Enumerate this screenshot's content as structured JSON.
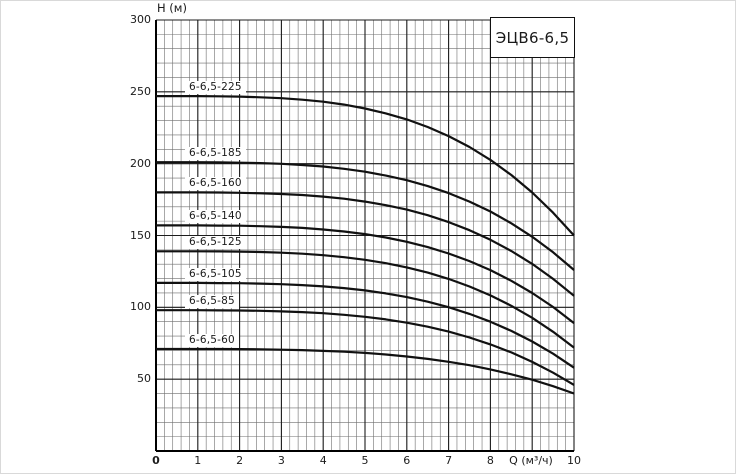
{
  "figure": {
    "title": "ЭЦВ6-6,5",
    "y_axis_title": "Н (м)",
    "x_axis_title": "Q (м³/ч)"
  },
  "chart_data": {
    "type": "line",
    "title": "ЭЦВ6-6,5",
    "xlabel": "Q (м³/ч)",
    "ylabel": "Н (м)",
    "xlim": [
      0,
      10
    ],
    "ylim": [
      0,
      300
    ],
    "x_ticks": [
      0,
      1,
      2,
      3,
      4,
      5,
      6,
      7,
      8,
      10
    ],
    "y_ticks": [
      50,
      100,
      150,
      200,
      250,
      300
    ],
    "x_major_step": 1,
    "y_major_step": 50,
    "x_minor_step": 0.2,
    "y_minor_step": 10,
    "grid": "minor-and-major",
    "legend_position": "labels-on-curves",
    "x": [
      0,
      0.5,
      1,
      1.5,
      2,
      2.5,
      3,
      3.5,
      4,
      4.5,
      5,
      5.5,
      6,
      6.5,
      7,
      7.5,
      8,
      8.5,
      9,
      9.5,
      10
    ],
    "series": [
      {
        "name": "6-6,5-225",
        "values": [
          247,
          247,
          247,
          246.9,
          246.7,
          246.2,
          245.6,
          244.5,
          243.1,
          241.1,
          238.4,
          235,
          230.8,
          225.5,
          219.2,
          211.6,
          202.6,
          192.1,
          179.9,
          165.9,
          150
        ]
      },
      {
        "name": "6-6,5-185",
        "values": [
          201,
          201,
          201,
          200.9,
          200.7,
          200.4,
          199.9,
          199.1,
          198,
          196.4,
          194.4,
          191.7,
          188.5,
          184.4,
          179.5,
          173.6,
          166.7,
          158.5,
          149.1,
          138.3,
          126
        ]
      },
      {
        "name": "6-6,5-160",
        "values": [
          180,
          180,
          180,
          179.9,
          179.7,
          179.4,
          178.9,
          178.2,
          177.1,
          175.6,
          173.6,
          171.1,
          168,
          164.1,
          159.3,
          153.7,
          147,
          139.2,
          130.2,
          119.8,
          108
        ]
      },
      {
        "name": "6-6,5-140",
        "values": [
          157,
          157,
          157,
          156.9,
          156.8,
          156.5,
          156,
          155.3,
          154.2,
          152.8,
          151,
          148.6,
          145.6,
          141.9,
          137.5,
          132.2,
          125.9,
          118.5,
          110,
          100.2,
          89
        ]
      },
      {
        "name": "6-6,5-125",
        "values": [
          139,
          139,
          139,
          138.9,
          138.8,
          138.5,
          138,
          137.3,
          136.3,
          134.9,
          133.1,
          130.7,
          127.8,
          124.2,
          119.8,
          114.5,
          108.3,
          101.1,
          92.7,
          83,
          72
        ]
      },
      {
        "name": "6-6,5-105",
        "values": [
          117,
          117,
          117,
          116.9,
          116.8,
          116.5,
          116.1,
          115.5,
          114.6,
          113.4,
          111.8,
          109.7,
          107.1,
          103.9,
          100.1,
          95.4,
          90,
          83.6,
          76.2,
          67.7,
          58
        ]
      },
      {
        "name": "6-6,5-85",
        "values": [
          98,
          98,
          98,
          97.9,
          97.8,
          97.6,
          97.2,
          96.7,
          95.9,
          94.8,
          93.4,
          91.6,
          89.3,
          86.5,
          83.1,
          79,
          74.2,
          68.6,
          62,
          54.5,
          46
        ]
      },
      {
        "name": "6-6,5-60",
        "values": [
          71,
          71,
          71,
          71,
          70.9,
          70.8,
          70.5,
          70.2,
          69.7,
          69.1,
          68.3,
          67.2,
          65.8,
          64.1,
          62.1,
          59.7,
          56.8,
          53.4,
          49.6,
          45.1,
          40
        ]
      }
    ]
  },
  "colors": {
    "background": "#ffffff",
    "curve": "#111111",
    "grid_minor": "#6f6f6f",
    "grid_major": "#1c1c1c",
    "axis": "#000000",
    "text": "#1a1a1a"
  }
}
